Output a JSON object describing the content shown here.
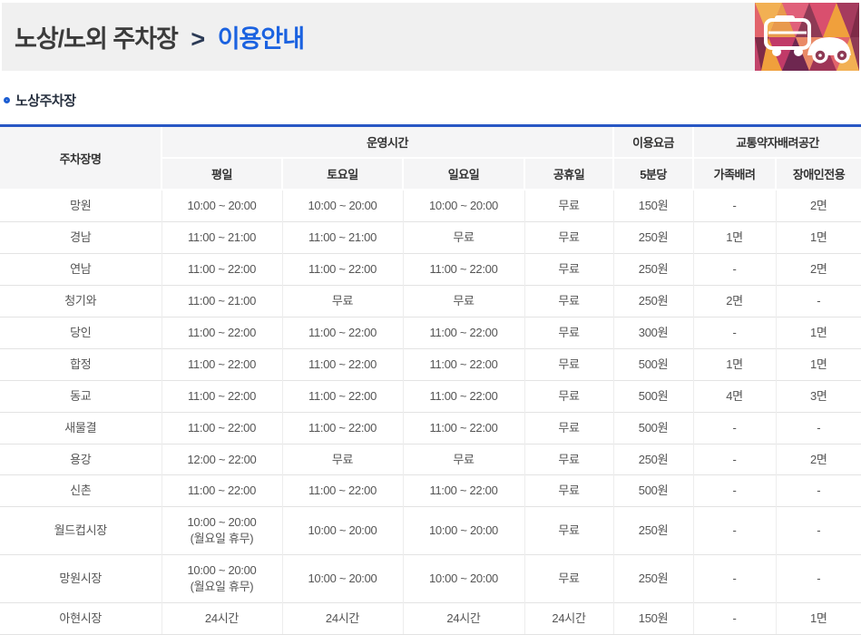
{
  "page": {
    "breadcrumb": {
      "main": "노상/노외 주차장",
      "separator": ">",
      "current": "이용안내"
    }
  },
  "section": {
    "title": "노상주차장"
  },
  "table": {
    "header": {
      "parking_name": "주차장명",
      "group_hours": "운영시간",
      "group_fee": "이용요금",
      "group_priority": "교통약자배려공간",
      "sub_weekday": "평일",
      "sub_saturday": "토요일",
      "sub_sunday": "일요일",
      "sub_holiday": "공휴일",
      "sub_per5min": "5분당",
      "sub_family": "가족배려",
      "sub_disabled": "장애인전용"
    },
    "rows": [
      [
        "망원",
        "10:00 ~ 20:00",
        "10:00 ~ 20:00",
        "10:00 ~ 20:00",
        "무료",
        "150원",
        "-",
        "2면"
      ],
      [
        "경남",
        "11:00 ~ 21:00",
        "11:00 ~ 21:00",
        "무료",
        "무료",
        "250원",
        "1면",
        "1면"
      ],
      [
        "연남",
        "11:00 ~ 22:00",
        "11:00 ~ 22:00",
        "11:00 ~ 22:00",
        "무료",
        "250원",
        "-",
        "2면"
      ],
      [
        "청기와",
        "11:00 ~ 21:00",
        "무료",
        "무료",
        "무료",
        "250원",
        "2면",
        "-"
      ],
      [
        "당인",
        "11:00 ~ 22:00",
        "11:00 ~ 22:00",
        "11:00 ~ 22:00",
        "무료",
        "300원",
        "-",
        "1면"
      ],
      [
        "합정",
        "11:00 ~ 22:00",
        "11:00 ~ 22:00",
        "11:00 ~ 22:00",
        "무료",
        "500원",
        "1면",
        "1면"
      ],
      [
        "동교",
        "11:00 ~ 22:00",
        "11:00 ~ 22:00",
        "11:00 ~ 22:00",
        "무료",
        "500원",
        "4면",
        "3면"
      ],
      [
        "새물결",
        "11:00 ~ 22:00",
        "11:00 ~ 22:00",
        "11:00 ~ 22:00",
        "무료",
        "500원",
        "-",
        "-"
      ],
      [
        "용강",
        "12:00 ~ 22:00",
        "무료",
        "무료",
        "무료",
        "250원",
        "-",
        "2면"
      ],
      [
        "신촌",
        "11:00 ~ 22:00",
        "11:00 ~ 22:00",
        "11:00 ~ 22:00",
        "무료",
        "500원",
        "-",
        "-"
      ],
      [
        "월드컵시장",
        "10:00 ~ 20:00\n(월요일 휴무)",
        "10:00 ~ 20:00",
        "10:00 ~ 20:00",
        "무료",
        "250원",
        "-",
        "-"
      ],
      [
        "망원시장",
        "10:00 ~ 20:00\n(월요일 휴무)",
        "10:00 ~ 20:00",
        "10:00 ~ 20:00",
        "무료",
        "250원",
        "-",
        "-"
      ],
      [
        "아현시장",
        "24시간",
        "24시간",
        "24시간",
        "24시간",
        "150원",
        "-",
        "1면"
      ]
    ]
  },
  "icons": {
    "bullet": "ring-bullet-icon",
    "illustration": "bus-and-car-icon"
  },
  "colors": {
    "accent_blue": "#1b62e0",
    "table_top_border": "#2857c4",
    "header_band_bg": "#f0f0f0",
    "table_header_bg": "#f5f5f6"
  }
}
